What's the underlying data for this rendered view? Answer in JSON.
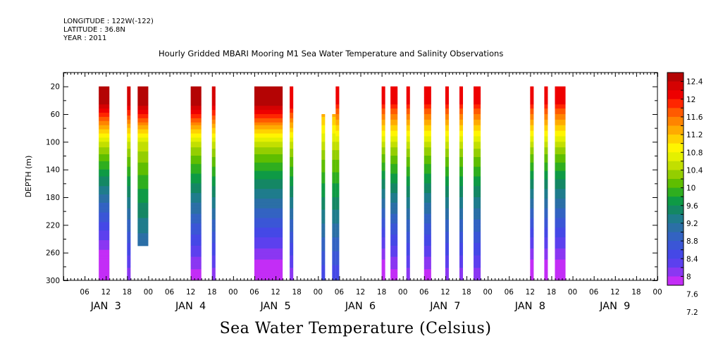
{
  "header": {
    "longitude": "LONGITUDE : 122W(-122)",
    "latitude": "LATITUDE : 36.8N",
    "year": "YEAR : 2011"
  },
  "chart_title": "Hourly Gridded MBARI Mooring M1 Sea Water Temperature and Salinity Observations",
  "variable_title": "Sea Water Temperature (Celsius)",
  "colors": {
    "palette": [
      "#b40404",
      "#d50202",
      "#ee0000",
      "#ff2600",
      "#ff5a00",
      "#ff8400",
      "#ffab00",
      "#ffd200",
      "#fff500",
      "#e4f000",
      "#c2df00",
      "#94ce00",
      "#5fbe00",
      "#2fae1f",
      "#0e9a45",
      "#148764",
      "#1f7c8c",
      "#2b6fa6",
      "#3363c2",
      "#3b56d6",
      "#4548e6",
      "#5c40ee",
      "#8a37f2",
      "#c32df6"
    ]
  },
  "chart_data": {
    "type": "heatmap",
    "ylabel": "DEPTH (m)",
    "ylim": [
      300,
      0
    ],
    "y_ticks": [
      20,
      60,
      100,
      140,
      180,
      220,
      260,
      300
    ],
    "x_tick_labels": [
      "06",
      "12",
      "18",
      "00",
      "06",
      "12",
      "18",
      "00",
      "06",
      "12",
      "18",
      "00",
      "06",
      "12",
      "18",
      "00",
      "06",
      "12",
      "18",
      "00",
      "06",
      "12",
      "18",
      "00",
      "06",
      "12",
      "18",
      "00"
    ],
    "day_labels": [
      "JAN  3",
      "JAN  4",
      "JAN  5",
      "JAN  6",
      "JAN  7",
      "JAN  8",
      "JAN  9"
    ],
    "x_range_hours": [
      0,
      168
    ],
    "colorbar": {
      "min": 7.2,
      "max": 12.6,
      "step": 0.2,
      "labels": [
        "12.4",
        "12",
        "11.6",
        "11.2",
        "10.8",
        "10.4",
        "10",
        "9.6",
        "9.2",
        "8.8",
        "8.4",
        "8",
        "7.6",
        "7.2"
      ]
    },
    "segments": [
      {
        "start": 10.0,
        "end": 13.0,
        "top": 20,
        "bottom": 300,
        "surface_temp": 12.4,
        "bottom_temp": 7.4
      },
      {
        "start": 18.0,
        "end": 19.0,
        "top": 20,
        "bottom": 300,
        "surface_temp": 12.3,
        "bottom_temp": 8.0
      },
      {
        "start": 21.0,
        "end": 24.0,
        "top": 20,
        "bottom": 250,
        "surface_temp": 12.5,
        "bottom_temp": 8.6
      },
      {
        "start": 36.0,
        "end": 39.0,
        "top": 20,
        "bottom": 300,
        "surface_temp": 12.5,
        "bottom_temp": 7.8
      },
      {
        "start": 42.0,
        "end": 43.0,
        "top": 20,
        "bottom": 300,
        "surface_temp": 12.3,
        "bottom_temp": 8.0
      },
      {
        "start": 54.0,
        "end": 62.0,
        "top": 20,
        "bottom": 300,
        "surface_temp": 12.5,
        "bottom_temp": 7.6
      },
      {
        "start": 64.0,
        "end": 65.0,
        "top": 20,
        "bottom": 300,
        "surface_temp": 12.2,
        "bottom_temp": 8.0
      },
      {
        "start": 73.0,
        "end": 74.0,
        "top": 60,
        "bottom": 300,
        "surface_temp": 11.5,
        "bottom_temp": 8.4
      },
      {
        "start": 76.0,
        "end": 77.0,
        "top": 60,
        "bottom": 300,
        "surface_temp": 11.5,
        "bottom_temp": 8.4
      },
      {
        "start": 77.0,
        "end": 78.0,
        "top": 20,
        "bottom": 300,
        "surface_temp": 12.0,
        "bottom_temp": 8.4
      },
      {
        "start": 90.0,
        "end": 91.0,
        "top": 20,
        "bottom": 300,
        "surface_temp": 12.0,
        "bottom_temp": 7.6
      },
      {
        "start": 92.5,
        "end": 94.5,
        "top": 20,
        "bottom": 300,
        "surface_temp": 12.0,
        "bottom_temp": 7.8
      },
      {
        "start": 97.0,
        "end": 98.0,
        "top": 20,
        "bottom": 300,
        "surface_temp": 12.0,
        "bottom_temp": 8.0
      },
      {
        "start": 102.0,
        "end": 104.0,
        "top": 20,
        "bottom": 300,
        "surface_temp": 12.0,
        "bottom_temp": 7.8
      },
      {
        "start": 108.0,
        "end": 109.0,
        "top": 20,
        "bottom": 300,
        "surface_temp": 12.0,
        "bottom_temp": 8.0
      },
      {
        "start": 112.0,
        "end": 113.0,
        "top": 20,
        "bottom": 300,
        "surface_temp": 12.0,
        "bottom_temp": 8.0
      },
      {
        "start": 116.0,
        "end": 118.0,
        "top": 20,
        "bottom": 300,
        "surface_temp": 12.0,
        "bottom_temp": 8.0
      },
      {
        "start": 132.0,
        "end": 133.0,
        "top": 20,
        "bottom": 300,
        "surface_temp": 12.0,
        "bottom_temp": 7.6
      },
      {
        "start": 136.0,
        "end": 137.0,
        "top": 20,
        "bottom": 300,
        "surface_temp": 12.0,
        "bottom_temp": 7.6
      },
      {
        "start": 139.0,
        "end": 142.0,
        "top": 20,
        "bottom": 300,
        "surface_temp": 12.0,
        "bottom_temp": 7.6
      }
    ]
  }
}
